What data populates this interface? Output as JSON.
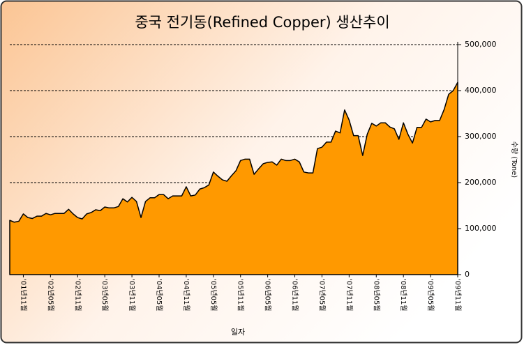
{
  "chart_data": {
    "type": "area",
    "title": "중국 전기동(Refined Copper) 생산추이",
    "x_label": "일자",
    "y_label": "수량 (Tone)",
    "categories": [
      null,
      null,
      null,
      "'01년11월",
      null,
      null,
      null,
      null,
      null,
      "'02년05월",
      null,
      null,
      null,
      null,
      null,
      "'02년11월",
      null,
      null,
      null,
      null,
      null,
      "'03년05월",
      null,
      null,
      null,
      null,
      null,
      "'03년11월",
      null,
      null,
      null,
      null,
      null,
      "'04년05월",
      null,
      null,
      null,
      null,
      null,
      "'04년11월",
      null,
      null,
      null,
      null,
      null,
      "'05년05월",
      null,
      null,
      null,
      null,
      null,
      "'05년11월",
      null,
      null,
      null,
      null,
      null,
      "'06년05월",
      null,
      null,
      null,
      null,
      null,
      "'06년11월",
      null,
      null,
      null,
      null,
      null,
      "'07년05월",
      null,
      null,
      null,
      null,
      null,
      "'07년11월",
      null,
      null,
      null,
      null,
      null,
      "'08년05월",
      null,
      null,
      null,
      null,
      null,
      "'08년11월",
      null,
      null,
      null,
      null,
      null,
      "'09년05월",
      null,
      null,
      null,
      null,
      null,
      "'09년11월"
    ],
    "values": [
      118000,
      114000,
      116000,
      132000,
      124000,
      122000,
      127000,
      127000,
      133000,
      130000,
      133000,
      133000,
      133000,
      142000,
      132000,
      124000,
      121000,
      132000,
      135000,
      141000,
      139000,
      147000,
      145000,
      145000,
      148000,
      165000,
      158000,
      168000,
      159000,
      124000,
      159000,
      167000,
      167000,
      174000,
      174000,
      165000,
      171000,
      171000,
      171000,
      191000,
      171000,
      173000,
      186000,
      189000,
      195000,
      223000,
      214000,
      206000,
      203000,
      215000,
      226000,
      248000,
      251000,
      251000,
      218000,
      230000,
      241000,
      244000,
      245000,
      238000,
      251000,
      248000,
      248000,
      251000,
      245000,
      223000,
      221000,
      221000,
      274000,
      277000,
      288000,
      288000,
      312000,
      308000,
      358000,
      336000,
      302000,
      302000,
      259000,
      305000,
      329000,
      323000,
      330000,
      330000,
      321000,
      317000,
      294000,
      330000,
      305000,
      286000,
      320000,
      320000,
      338000,
      332000,
      335000,
      335000,
      359000,
      392000,
      400000,
      418000
    ],
    "color": "#ff9900",
    "ylim": [
      0,
      500000
    ],
    "yticks": [
      0,
      {
        "value": 100000,
        "label": "100,000"
      },
      {
        "value": 200000,
        "label": "200,000"
      },
      {
        "value": 300000,
        "label": "300,000"
      },
      {
        "value": 400000,
        "label": "400,000"
      },
      {
        "value": 500000,
        "label": "500,000"
      }
    ],
    "grid": true
  }
}
